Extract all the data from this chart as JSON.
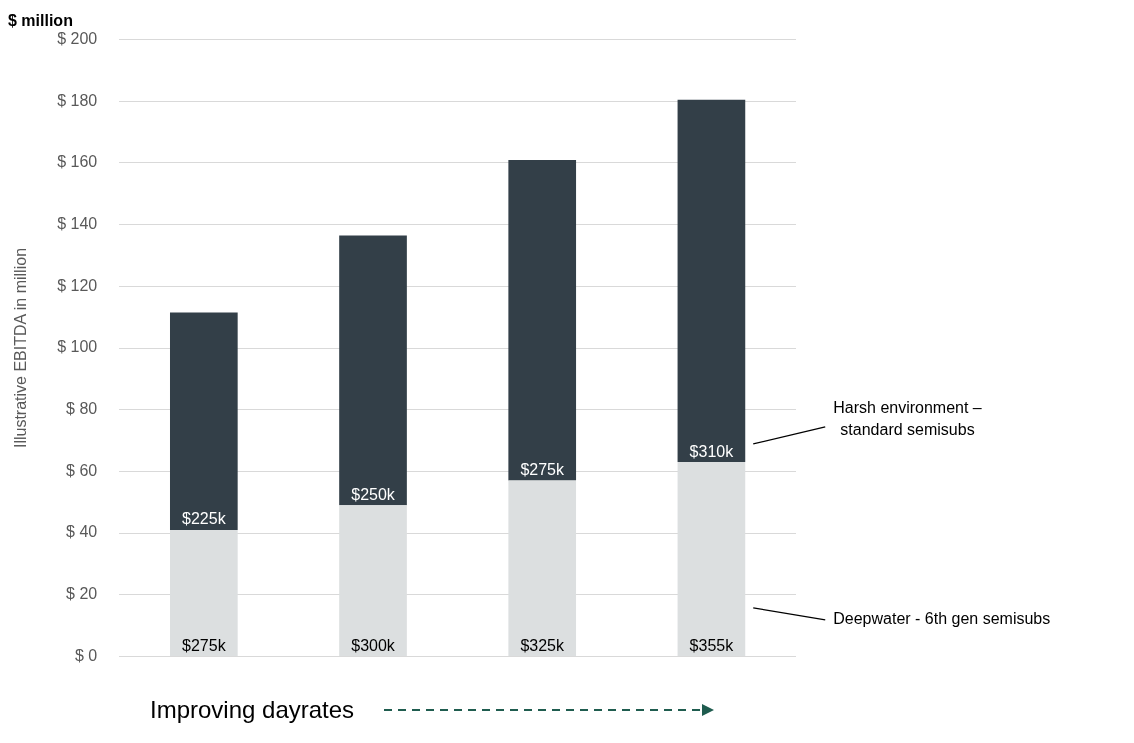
{
  "chart_data": {
    "type": "bar",
    "title": "$ million",
    "ylabel": "Illustrative EBITDA in million",
    "xlabel": "Improving dayrates",
    "categories": [
      null,
      null,
      null,
      null
    ],
    "stacked": true,
    "legend": false,
    "grid": "y",
    "series": [
      {
        "name": "Deepwater - 6th gen semisubs",
        "color": "#dcdfe0",
        "values": [
          41,
          49,
          57,
          63
        ]
      },
      {
        "name": "Harsh environment – standard semisubs",
        "color": "#333f48",
        "values": [
          70.5,
          87.5,
          104,
          117.5
        ]
      }
    ],
    "annotations": [
      {
        "text": "$275k",
        "y": 0
      },
      {
        "text": "$300k",
        "y": 0
      },
      {
        "text": "$325k",
        "y": 0
      },
      {
        "text": "$355k",
        "y": 0
      },
      {
        "text": "$225k",
        "y": 41
      },
      {
        "text": "$250k",
        "y": 49
      },
      {
        "text": "$275k",
        "y": 57
      },
      {
        "text": "$310k",
        "y": 63
      }
    ],
    "ylim": [
      0,
      200
    ],
    "yticks": [
      {
        "value": 0,
        "label": "$ 0"
      },
      {
        "value": 20,
        "label": "$ 20"
      },
      {
        "value": 40,
        "label": "$ 40"
      },
      {
        "value": 60,
        "label": "$ 60"
      },
      {
        "value": 80,
        "label": "$ 80"
      },
      {
        "value": 100,
        "label": "$ 100"
      },
      {
        "value": 120,
        "label": "$ 120"
      },
      {
        "value": 140,
        "label": "$ 140"
      },
      {
        "value": 160,
        "label": "$ 160"
      },
      {
        "value": 180,
        "label": "$ 180"
      },
      {
        "value": 200,
        "label": "$ 200"
      }
    ]
  }
}
